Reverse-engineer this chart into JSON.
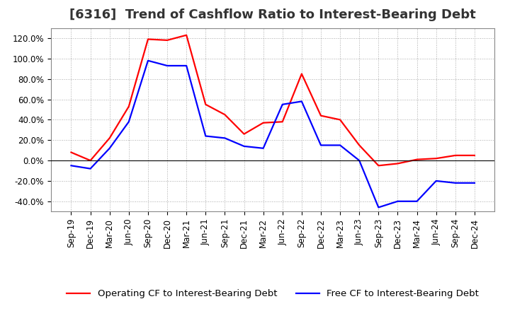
{
  "title": "[6316]  Trend of Cashflow Ratio to Interest-Bearing Debt",
  "x_labels": [
    "Sep-19",
    "Dec-19",
    "Mar-20",
    "Jun-20",
    "Sep-20",
    "Dec-20",
    "Mar-21",
    "Jun-21",
    "Sep-21",
    "Dec-21",
    "Mar-22",
    "Jun-22",
    "Sep-22",
    "Dec-22",
    "Mar-23",
    "Jun-23",
    "Sep-23",
    "Dec-23",
    "Mar-24",
    "Jun-24",
    "Sep-24",
    "Dec-24"
  ],
  "operating_cf": [
    8,
    0,
    22,
    53,
    119,
    118,
    123,
    55,
    45,
    26,
    37,
    38,
    85,
    44,
    40,
    15,
    -5,
    -3,
    1,
    2,
    5,
    5
  ],
  "free_cf": [
    -5,
    -8,
    12,
    38,
    98,
    93,
    93,
    24,
    22,
    14,
    12,
    55,
    58,
    15,
    15,
    0,
    -46,
    -40,
    -40,
    -20,
    -22,
    -22
  ],
  "ylim": [
    -50,
    130
  ],
  "yticks": [
    -40,
    -20,
    0,
    20,
    40,
    60,
    80,
    100,
    120
  ],
  "operating_color": "#ff0000",
  "free_color": "#0000ff",
  "grid_color": "#aaaaaa",
  "background_color": "#ffffff",
  "legend_op": "Operating CF to Interest-Bearing Debt",
  "legend_free": "Free CF to Interest-Bearing Debt",
  "title_fontsize": 13,
  "tick_fontsize": 8.5,
  "legend_fontsize": 9.5
}
